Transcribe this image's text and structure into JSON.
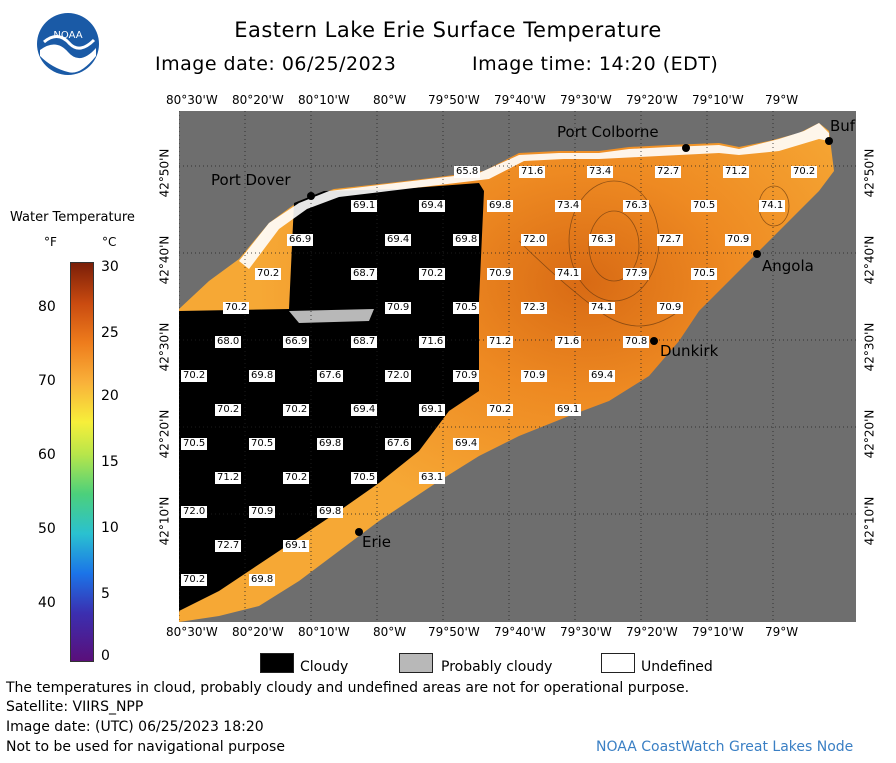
{
  "header": {
    "title": "Eastern Lake Erie Surface Temperature",
    "image_date": "Image date: 06/25/2023",
    "image_time": "Image time: 14:20 (EDT)",
    "logo_text": "NOAA"
  },
  "scale": {
    "title": "Water Temperature",
    "unit_f": "°F",
    "unit_c": "°C",
    "f_ticks": [
      "80",
      "70",
      "60",
      "50",
      "40"
    ],
    "c_ticks": [
      "30",
      "25",
      "20",
      "15",
      "10",
      "5",
      "0"
    ],
    "colors": [
      "#5a0f7a",
      "#1b74e8",
      "#4cd07b",
      "#f7ef3a",
      "#ee7c1c",
      "#7a1e08"
    ]
  },
  "axes": {
    "lon_top": [
      "80°30'W",
      "80°20'W",
      "80°10'W",
      "80°W",
      "79°50'W",
      "79°40'W",
      "79°30'W",
      "79°20'W",
      "79°10'W",
      "79°W"
    ],
    "lon_bottom": [
      "80°30'W",
      "80°20'W",
      "80°10'W",
      "80°W",
      "79°50'W",
      "79°40'W",
      "79°30'W",
      "79°20'W",
      "79°10'W",
      "79°W"
    ],
    "lat_left": [
      "42°50'N",
      "42°40'N",
      "42°30'N",
      "42°20'N",
      "42°10'N"
    ],
    "lat_right": [
      "42°50'N",
      "42°40'N",
      "42°30'N",
      "42°20'N",
      "42°10'N"
    ]
  },
  "places": {
    "port_dover": "Port Dover",
    "port_colborne": "Port Colborne",
    "buffalo": "Buf",
    "angola": "Angola",
    "dunkirk": "Dunkirk",
    "erie": "Erie"
  },
  "temperatures": [
    "65.8",
    "71.6",
    "73.4",
    "72.7",
    "71.2",
    "70.2",
    "69.1",
    "69.4",
    "69.8",
    "73.4",
    "76.3",
    "70.5",
    "74.1",
    "66.9",
    "69.4",
    "69.8",
    "72.0",
    "76.3",
    "72.7",
    "70.9",
    "70.2",
    "68.7",
    "70.2",
    "70.9",
    "74.1",
    "77.9",
    "70.5",
    "70.2",
    "70.9",
    "70.5",
    "72.3",
    "74.1",
    "70.9",
    "68.0",
    "66.9",
    "68.7",
    "71.6",
    "71.2",
    "71.6",
    "70.8",
    "70.2",
    "69.8",
    "67.6",
    "72.0",
    "70.9",
    "70.9",
    "69.4",
    "70.2",
    "70.2",
    "69.4",
    "69.1",
    "70.2",
    "69.1",
    "70.5",
    "70.5",
    "69.8",
    "67.6",
    "69.4",
    "71.2",
    "70.2",
    "70.5",
    "63.1",
    "72.0",
    "70.9",
    "69.8",
    "72.7",
    "69.1",
    "70.2",
    "69.8"
  ],
  "legend": {
    "cloudy": "Cloudy",
    "probably_cloudy": "Probably cloudy",
    "undefined": "Undefined",
    "cloudy_color": "#000000",
    "probably_cloudy_color": "#b8b8b8",
    "undefined_color": "#ffffff"
  },
  "footer": {
    "note": "The temperatures in cloud, probably cloudy and undefined areas are not for operational purpose.",
    "satellite": "Satellite: VIIRS_NPP",
    "utc_date": "Image date: (UTC) 06/25/2023  18:20",
    "nav": "Not to be used for navigational purpose",
    "credit": "NOAA CoastWatch Great Lakes Node"
  }
}
